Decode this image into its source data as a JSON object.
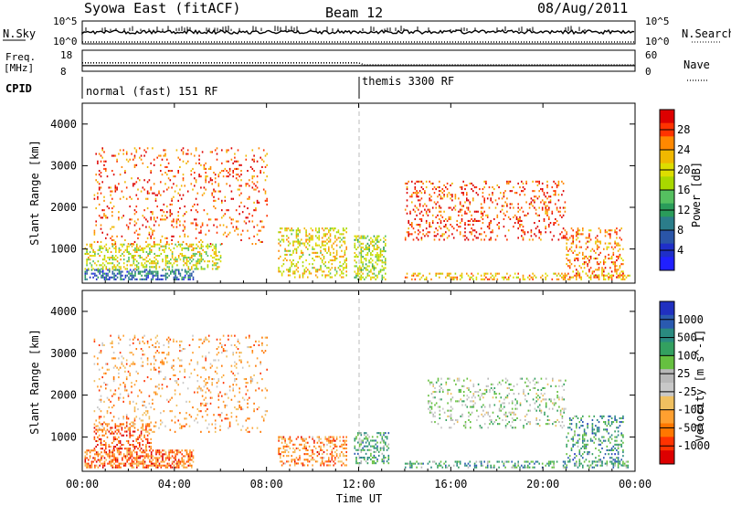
{
  "header": {
    "radar": "Syowa East (fitACF)",
    "beam": "Beam 12",
    "date": "08/Aug/2011"
  },
  "strips": {
    "nsky_label": "N.Sky",
    "nsearch_label": "N.Search",
    "freq_label_1": "Freq.",
    "freq_label_2": "[MHz]",
    "nave_label": "Nave",
    "cpid_label": "CPID",
    "nsky_ticks": [
      "10^5",
      "10^0"
    ],
    "nsearch_ticks": [
      "10^5",
      "10^0"
    ],
    "freq_ticks": [
      "18",
      "8"
    ],
    "nave_ticks": [
      "60",
      "0"
    ],
    "cpid_modes": [
      {
        "label": "normal (fast) 151 RF",
        "start_hour": 0
      },
      {
        "label": "themis 3300 RF",
        "start_hour": 12
      }
    ],
    "freq_mhz": [
      {
        "hour": 0,
        "value": 12.0
      },
      {
        "hour": 12,
        "value": 11.0
      },
      {
        "hour": 24,
        "value": 11.0
      }
    ],
    "nave": [
      {
        "hour": 0,
        "value": 16
      },
      {
        "hour": 24,
        "value": 16
      }
    ]
  },
  "time_axis": {
    "label": "Time UT",
    "ticks": [
      "00:00",
      "04:00",
      "08:00",
      "12:00",
      "16:00",
      "20:00",
      "00:00"
    ]
  },
  "chart_data": [
    {
      "type": "heatmap",
      "name": "power",
      "ylabel": "Slant Range [km]",
      "ylim": [
        180,
        4500
      ],
      "yticks": [
        1000,
        2000,
        3000,
        4000
      ],
      "xlim": [
        0,
        24
      ],
      "colorbar_label": "Power [dB]",
      "colorbar_ticks": [
        "28",
        "24",
        "20",
        "16",
        "12",
        "8",
        "4"
      ],
      "colorbar_colors": [
        "#dd0000",
        "#ff3300",
        "#ff8800",
        "#f0b800",
        "#dddd00",
        "#a8d800",
        "#55c060",
        "#2a9c5a",
        "#2b7d8a",
        "#2a55a8",
        "#1f2fc8",
        "#2020ff"
      ],
      "marker_hour": 12,
      "regions": [
        {
          "x": [
            0.1,
            4.8
          ],
          "y": [
            250,
            500
          ],
          "level": 0.75,
          "density": 0.55
        },
        {
          "x": [
            0.1,
            6.0
          ],
          "y": [
            500,
            1100
          ],
          "level": 0.4,
          "density": 0.35
        },
        {
          "x": [
            0.5,
            8.0
          ],
          "y": [
            1100,
            3400
          ],
          "level": 0.15,
          "density": 0.12
        },
        {
          "x": [
            8.5,
            11.5
          ],
          "y": [
            300,
            1500
          ],
          "level": 0.35,
          "density": 0.3
        },
        {
          "x": [
            11.8,
            13.2
          ],
          "y": [
            250,
            1300
          ],
          "level": 0.45,
          "density": 0.45
        },
        {
          "x": [
            14.0,
            23.8
          ],
          "y": [
            250,
            400
          ],
          "level": 0.3,
          "density": 0.35
        },
        {
          "x": [
            14.0,
            21.0
          ],
          "y": [
            1200,
            2600
          ],
          "level": 0.12,
          "density": 0.18
        },
        {
          "x": [
            21.0,
            23.5
          ],
          "y": [
            300,
            1500
          ],
          "level": 0.2,
          "density": 0.25
        }
      ]
    },
    {
      "type": "heatmap",
      "name": "velocity",
      "ylabel": "Slant Range [km]",
      "ylim": [
        180,
        4500
      ],
      "yticks": [
        1000,
        2000,
        3000,
        4000
      ],
      "xlim": [
        0,
        24
      ],
      "colorbar_label": "Velocity [m s^-1]",
      "colorbar_ticks": [
        "1000",
        "500",
        "100",
        "25",
        "-25",
        "-100",
        "-500",
        "-1000"
      ],
      "colorbar_colors": [
        "#2030c0",
        "#2a5ab0",
        "#2a8a80",
        "#33a060",
        "#66c040",
        "#b8b8b8",
        "#c8c8c8",
        "#f0c060",
        "#ffa030",
        "#ff7700",
        "#ff3300",
        "#dd0000"
      ],
      "marker_hour": 12,
      "regions": [
        {
          "x": [
            0.1,
            4.8
          ],
          "y": [
            250,
            700
          ],
          "level": 0.8,
          "density": 0.55
        },
        {
          "x": [
            0.5,
            3.0
          ],
          "y": [
            700,
            1300
          ],
          "level": 0.85,
          "density": 0.35
        },
        {
          "x": [
            0.5,
            8.0
          ],
          "y": [
            1100,
            3400
          ],
          "level": 0.7,
          "density": 0.12
        },
        {
          "x": [
            8.5,
            11.5
          ],
          "y": [
            300,
            1000
          ],
          "level": 0.75,
          "density": 0.35
        },
        {
          "x": [
            11.8,
            13.3
          ],
          "y": [
            350,
            1100
          ],
          "level": 0.3,
          "density": 0.4
        },
        {
          "x": [
            14.0,
            23.8
          ],
          "y": [
            250,
            400
          ],
          "level": 0.28,
          "density": 0.35
        },
        {
          "x": [
            15.0,
            21.0
          ],
          "y": [
            1200,
            2400
          ],
          "level": 0.45,
          "density": 0.18
        },
        {
          "x": [
            21.0,
            23.5
          ],
          "y": [
            300,
            1500
          ],
          "level": 0.25,
          "density": 0.25
        }
      ]
    }
  ]
}
